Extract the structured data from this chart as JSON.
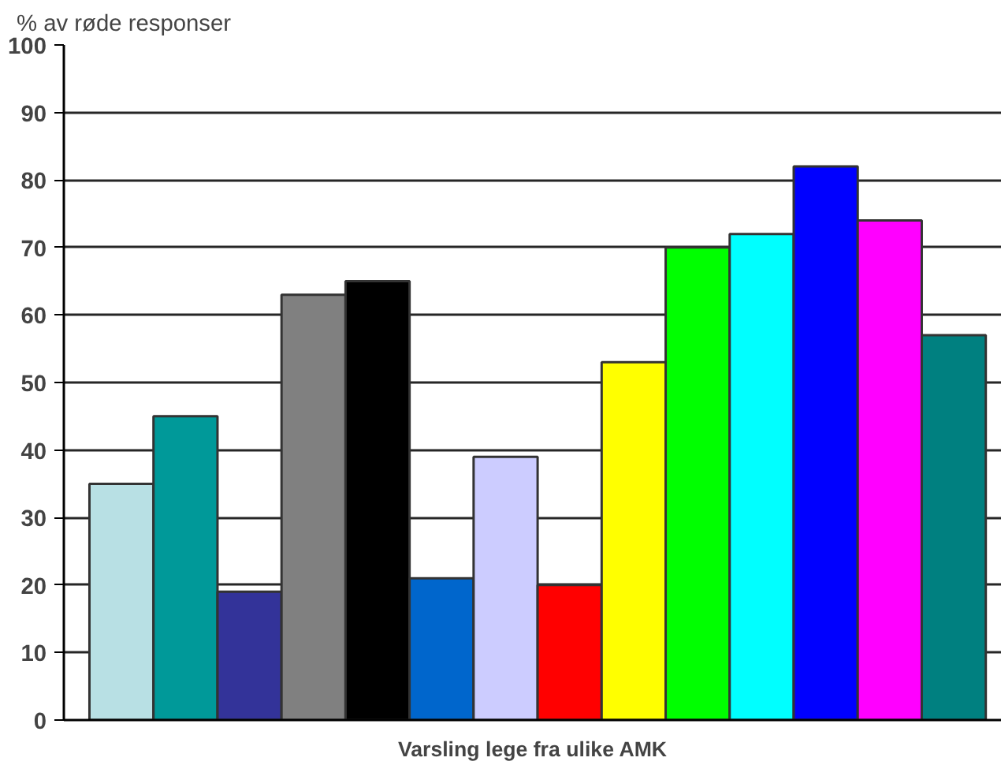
{
  "chart_data": {
    "type": "bar",
    "ylabel": "% av røde responser",
    "xlabel": "Varsling lege fra ulike AMK",
    "categories": [
      null,
      null,
      null,
      null,
      null,
      null,
      null,
      null,
      null,
      null,
      null,
      null,
      null,
      null
    ],
    "values": [
      35,
      45,
      19,
      63,
      65,
      21,
      39,
      20,
      53,
      70,
      72,
      82,
      74,
      57
    ],
    "colors": [
      "#b8e0e4",
      "#009999",
      "#333399",
      "#808080",
      "#000000",
      "#0066cc",
      "#ccccff",
      "#ff0000",
      "#ffff00",
      "#00ff00",
      "#00ffff",
      "#0000ff",
      "#ff00ff",
      "#008080"
    ],
    "ylim": [
      0,
      100
    ],
    "yticks": [
      0,
      10,
      20,
      30,
      40,
      50,
      60,
      70,
      80,
      90,
      100
    ],
    "grid": "y",
    "tick_labels": "y"
  }
}
